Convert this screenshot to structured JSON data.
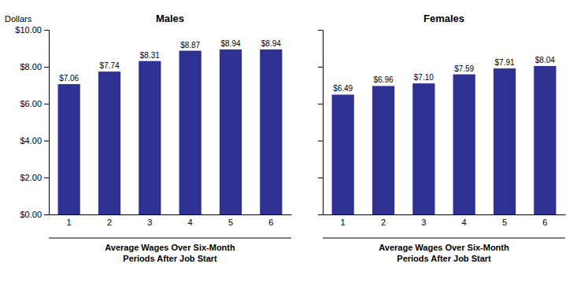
{
  "chart_data": [
    {
      "type": "bar",
      "title": "Males",
      "categories": [
        "1",
        "2",
        "3",
        "4",
        "5",
        "6"
      ],
      "values": [
        7.06,
        7.74,
        8.31,
        8.87,
        8.94,
        8.94
      ],
      "value_labels": [
        "$7.06",
        "$7.74",
        "$8.31",
        "$8.87",
        "$8.94",
        "$8.94"
      ],
      "data_labels": true,
      "color": "#2E3192",
      "ylabel": "Dollars",
      "xlabel": "Average Wages Over Six-Month\nPeriods After Job Start",
      "ylim": [
        0,
        10.0
      ],
      "yticks": [
        {
          "value": 0.0,
          "label": "$0.00"
        },
        {
          "value": 2.0,
          "label": "$2.00"
        },
        {
          "value": 4.0,
          "label": "$4.00"
        },
        {
          "value": 6.0,
          "label": "$6.00"
        },
        {
          "value": 8.0,
          "label": "$8.00"
        },
        {
          "value": 10.0,
          "label": "$10.00"
        }
      ]
    },
    {
      "type": "bar",
      "title": "Females",
      "categories": [
        "1",
        "2",
        "3",
        "4",
        "5",
        "6"
      ],
      "values": [
        6.49,
        6.96,
        7.1,
        7.59,
        7.91,
        8.04
      ],
      "value_labels": [
        "$6.49",
        "$6.96",
        "$7.10",
        "$7.59",
        "$7.91",
        "$8.04"
      ],
      "data_labels": true,
      "color": "#2E3192",
      "xlabel": "Average Wages Over Six-Month\nPeriods After Job Start",
      "ylim": [
        0,
        10.0
      ],
      "yticks": [
        0.0,
        2.0,
        4.0,
        6.0,
        8.0,
        10.0
      ],
      "tick_labels": "x"
    }
  ]
}
